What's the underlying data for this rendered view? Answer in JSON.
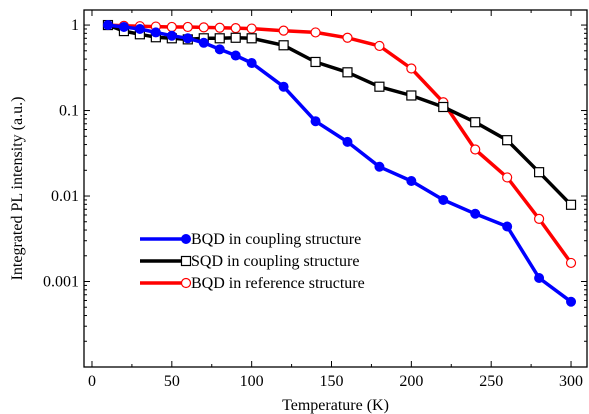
{
  "chart_data": {
    "type": "line",
    "xlabel": "Temperature (K)",
    "ylabel": "Integrated PL intensity (a.u.)",
    "xlim": [
      -5,
      310
    ],
    "ylim": [
      0.0001,
      1.5
    ],
    "yscale": "log",
    "grid": false,
    "legend_position": "center-left",
    "x_ticks": [
      0,
      50,
      100,
      150,
      200,
      250,
      300
    ],
    "x_tick_labels": [
      "0",
      "50",
      "100",
      "150",
      "200",
      "250",
      "300"
    ],
    "y_ticks": [
      1,
      0.1,
      0.01,
      0.001
    ],
    "y_tick_labels": [
      "1",
      "0.1",
      "0.01",
      "0.001"
    ],
    "series": [
      {
        "name": "BQD in coupling structure",
        "color": "#0000ff",
        "marker": "filled-circle",
        "x": [
          10,
          20,
          30,
          40,
          50,
          60,
          70,
          80,
          90,
          100,
          120,
          140,
          160,
          180,
          200,
          220,
          240,
          260,
          280,
          300
        ],
        "y": [
          1.0,
          0.95,
          0.9,
          0.82,
          0.75,
          0.7,
          0.62,
          0.52,
          0.44,
          0.36,
          0.19,
          0.075,
          0.043,
          0.022,
          0.015,
          0.009,
          0.0062,
          0.0044,
          0.0011,
          0.00058
        ]
      },
      {
        "name": "SQD in coupling structure",
        "color": "#000000",
        "marker": "open-square",
        "x": [
          10,
          20,
          30,
          40,
          50,
          60,
          70,
          80,
          90,
          100,
          120,
          140,
          160,
          180,
          200,
          220,
          240,
          260,
          280,
          300
        ],
        "y": [
          1.0,
          0.85,
          0.78,
          0.72,
          0.7,
          0.68,
          0.7,
          0.7,
          0.71,
          0.7,
          0.58,
          0.37,
          0.28,
          0.19,
          0.15,
          0.11,
          0.073,
          0.045,
          0.019,
          0.0079
        ]
      },
      {
        "name": "BQD in reference structure",
        "color": "#ff0000",
        "marker": "open-circle",
        "x": [
          10,
          20,
          30,
          40,
          50,
          60,
          70,
          80,
          90,
          100,
          120,
          140,
          160,
          180,
          200,
          220,
          240,
          260,
          280,
          300
        ],
        "y": [
          1.0,
          0.98,
          0.97,
          0.96,
          0.95,
          0.95,
          0.94,
          0.93,
          0.92,
          0.91,
          0.86,
          0.82,
          0.71,
          0.57,
          0.31,
          0.125,
          0.035,
          0.0165,
          0.0054,
          0.00165
        ]
      }
    ]
  }
}
